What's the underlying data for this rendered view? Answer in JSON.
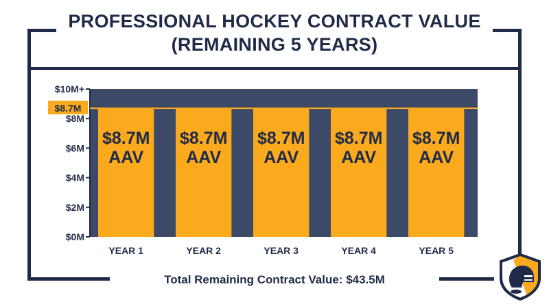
{
  "chart_data": {
    "type": "bar",
    "title_lines": [
      "PROFESSIONAL HOCKEY CONTRACT VALUE",
      "(REMAINING 5 YEARS)"
    ],
    "categories": [
      "YEAR 1",
      "YEAR 2",
      "YEAR 3",
      "YEAR 4",
      "YEAR 5"
    ],
    "values": [
      8.7,
      8.7,
      8.7,
      8.7,
      8.7
    ],
    "bar_labels": [
      [
        "$8.7M",
        "AAV"
      ],
      [
        "$8.7M",
        "AAV"
      ],
      [
        "$8.7M",
        "AAV"
      ],
      [
        "$8.7M",
        "AAV"
      ],
      [
        "$8.7M",
        "AAV"
      ]
    ],
    "y_ticks": [
      {
        "value": 0,
        "label": "$0M"
      },
      {
        "value": 2,
        "label": "$2M"
      },
      {
        "value": 4,
        "label": "$4M"
      },
      {
        "value": 6,
        "label": "$6M"
      },
      {
        "value": 8,
        "label": "$8M"
      },
      {
        "value": 10,
        "label": "$10M+"
      }
    ],
    "ylim": [
      0,
      10
    ],
    "reference_line": {
      "value": 8.7,
      "label": "$8.7M"
    },
    "footer": "Total Remaining Contract Value: $43.5M",
    "colors": {
      "bar": "#fbaa1d",
      "background": "#3c4a68",
      "frame": "#1e2a48",
      "text": "#1e2a48"
    },
    "grid": false,
    "legend": "none",
    "logo_icon": "hockey-helmet-shield-icon"
  }
}
